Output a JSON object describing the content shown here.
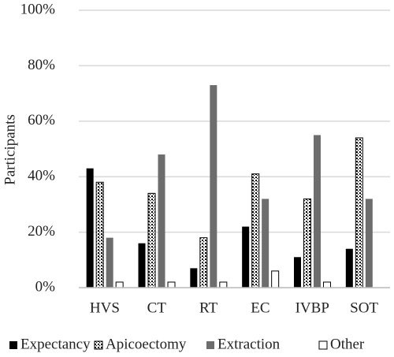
{
  "chart_data": {
    "type": "bar",
    "y_label": "Participants",
    "categories": [
      "HVS",
      "CT",
      "RT",
      "EC",
      "IVBP",
      "SOT"
    ],
    "series": [
      {
        "name": "Expectancy",
        "color": "#000000",
        "fill": "solid",
        "values": [
          43,
          16,
          7,
          22,
          11,
          14
        ]
      },
      {
        "name": "Apicoectomy",
        "color": "#000000",
        "fill": "dots",
        "values": [
          38,
          34,
          18,
          41,
          32,
          54
        ]
      },
      {
        "name": "Extraction",
        "color": "#6d6d6d",
        "fill": "solid",
        "values": [
          18,
          48,
          73,
          32,
          55,
          32
        ]
      },
      {
        "name": "Other",
        "color": "#000000",
        "fill": "outline",
        "values": [
          2,
          2,
          2,
          6,
          2,
          0
        ]
      }
    ],
    "ylim": [
      0,
      100
    ],
    "yticks": [
      {
        "value": 0,
        "label": "0%"
      },
      {
        "value": 20,
        "label": "20%"
      },
      {
        "value": 40,
        "label": "40%"
      },
      {
        "value": 60,
        "label": "60%"
      },
      {
        "value": 80,
        "label": "80%"
      },
      {
        "value": 100,
        "label": "100%"
      }
    ],
    "grid": true,
    "legend": "bottom"
  }
}
